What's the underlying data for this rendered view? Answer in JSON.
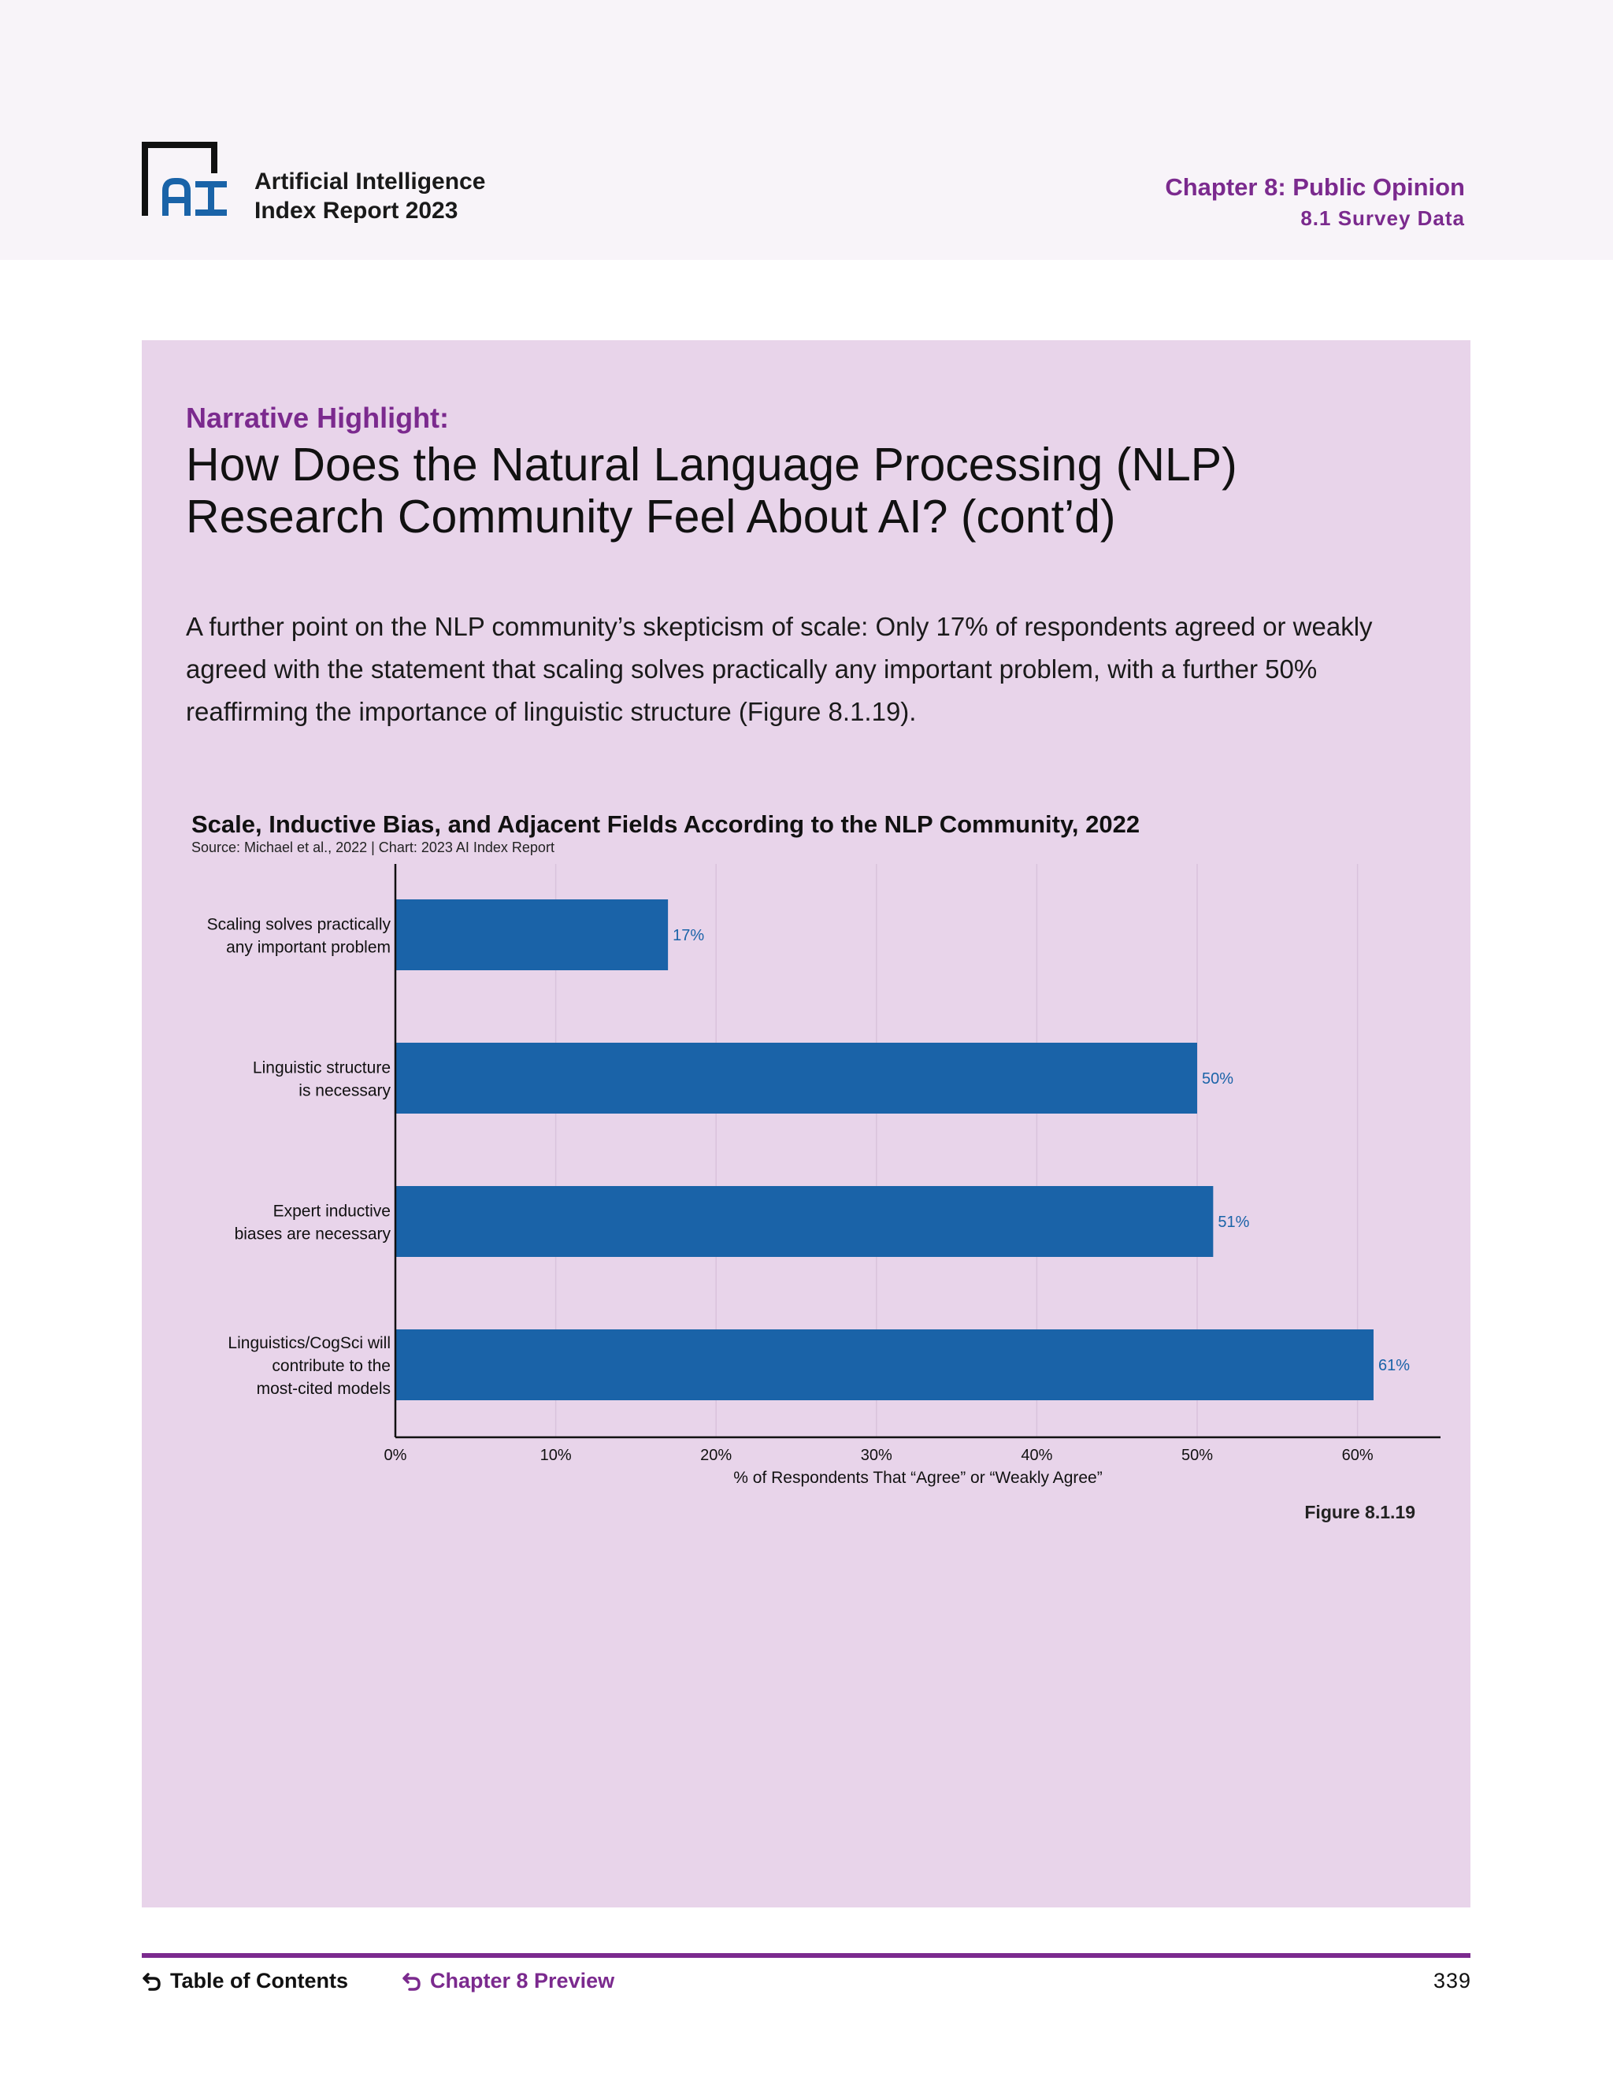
{
  "header": {
    "logo_icon": "ai-index-logo-icon",
    "report_title_line1": "Artificial Intelligence",
    "report_title_line2": "Index Report 2023",
    "chapter_title": "Chapter 8: Public Opinion",
    "section_title": "8.1 Survey Data"
  },
  "panel": {
    "highlight_label": "Narrative Highlight:",
    "headline_line1": "How Does the Natural Language Processing (NLP)",
    "headline_line2": "Research Community Feel About AI? (cont’d)",
    "body": "A further point on the NLP community’s skepticism of scale: Only 17% of respondents agreed or weakly agreed with the statement that scaling solves practically any important problem, with a further 50% reaffirming the importance of linguistic structure (Figure 8.1.19).",
    "figure_label": "Figure 8.1.19"
  },
  "chart_data": {
    "type": "bar",
    "orientation": "horizontal",
    "title": "Scale, Inductive Bias, and Adjacent Fields According to the NLP Community, 2022",
    "source": "Source: Michael et al., 2022 | Chart: 2023 AI Index Report",
    "xlabel": "% of Respondents That “Agree” or “Weakly Agree”",
    "ylabel": "",
    "xlim": [
      0,
      65
    ],
    "xticks": [
      0,
      10,
      20,
      30,
      40,
      50,
      60
    ],
    "xtick_labels": [
      "0%",
      "10%",
      "20%",
      "30%",
      "40%",
      "50%",
      "60%"
    ],
    "grid": true,
    "categories": [
      [
        "Scaling solves practically",
        "any important problem"
      ],
      [
        "Linguistic structure",
        "is necessary"
      ],
      [
        "Expert inductive",
        "biases are necessary"
      ],
      [
        "Linguistics/CogSci will",
        "contribute to the",
        "most-cited models"
      ]
    ],
    "values": [
      17,
      50,
      51,
      61
    ],
    "data_labels": [
      "17%",
      "50%",
      "51%",
      "61%"
    ],
    "bar_color": "#1a63a8"
  },
  "footer": {
    "toc_label": "Table of Contents",
    "chapter_preview_label": "Chapter 8 Preview",
    "back_icon": "return-arrow-icon",
    "page_number": "339"
  }
}
